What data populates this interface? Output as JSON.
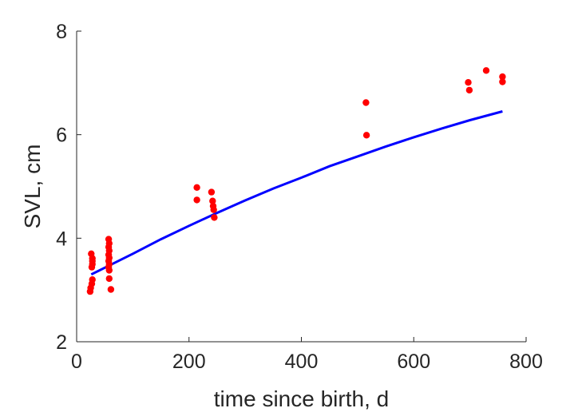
{
  "chart_data": {
    "type": "scatter",
    "title": "",
    "xlabel": "time since birth, d",
    "ylabel": "SVL, cm",
    "xlim": [
      0,
      800
    ],
    "ylim": [
      2,
      8
    ],
    "xticks": [
      0,
      200,
      400,
      600,
      800
    ],
    "yticks": [
      2,
      4,
      6,
      8
    ],
    "grid": false,
    "series": [
      {
        "kind": "scatter",
        "color": "#ff0000",
        "points": [
          [
            24,
            2.97
          ],
          [
            25,
            3.04
          ],
          [
            27,
            3.12
          ],
          [
            28,
            3.2
          ],
          [
            27,
            3.44
          ],
          [
            28,
            3.5
          ],
          [
            28,
            3.56
          ],
          [
            28,
            3.61
          ],
          [
            26,
            3.7
          ],
          [
            57,
            3.98
          ],
          [
            58,
            3.9
          ],
          [
            57,
            3.83
          ],
          [
            58,
            3.76
          ],
          [
            57,
            3.68
          ],
          [
            58,
            3.62
          ],
          [
            57,
            3.56
          ],
          [
            58,
            3.5
          ],
          [
            57,
            3.44
          ],
          [
            58,
            3.38
          ],
          [
            58,
            3.22
          ],
          [
            61,
            3.01
          ],
          [
            214,
            4.98
          ],
          [
            214,
            4.74
          ],
          [
            240,
            4.89
          ],
          [
            242,
            4.72
          ],
          [
            243,
            4.62
          ],
          [
            244,
            4.55
          ],
          [
            245,
            4.4
          ],
          [
            515,
            6.62
          ],
          [
            516,
            5.99
          ],
          [
            697,
            7.01
          ],
          [
            699,
            6.86
          ],
          [
            729,
            7.24
          ],
          [
            758,
            7.12
          ],
          [
            758,
            7.02
          ]
        ]
      },
      {
        "kind": "line",
        "color": "#0000ff",
        "points": [
          [
            26,
            3.3
          ],
          [
            50,
            3.43
          ],
          [
            100,
            3.7
          ],
          [
            150,
            3.98
          ],
          [
            200,
            4.24
          ],
          [
            250,
            4.49
          ],
          [
            300,
            4.73
          ],
          [
            350,
            4.96
          ],
          [
            400,
            5.17
          ],
          [
            450,
            5.39
          ],
          [
            500,
            5.58
          ],
          [
            550,
            5.77
          ],
          [
            600,
            5.95
          ],
          [
            650,
            6.12
          ],
          [
            700,
            6.28
          ],
          [
            758,
            6.45
          ]
        ]
      }
    ]
  }
}
